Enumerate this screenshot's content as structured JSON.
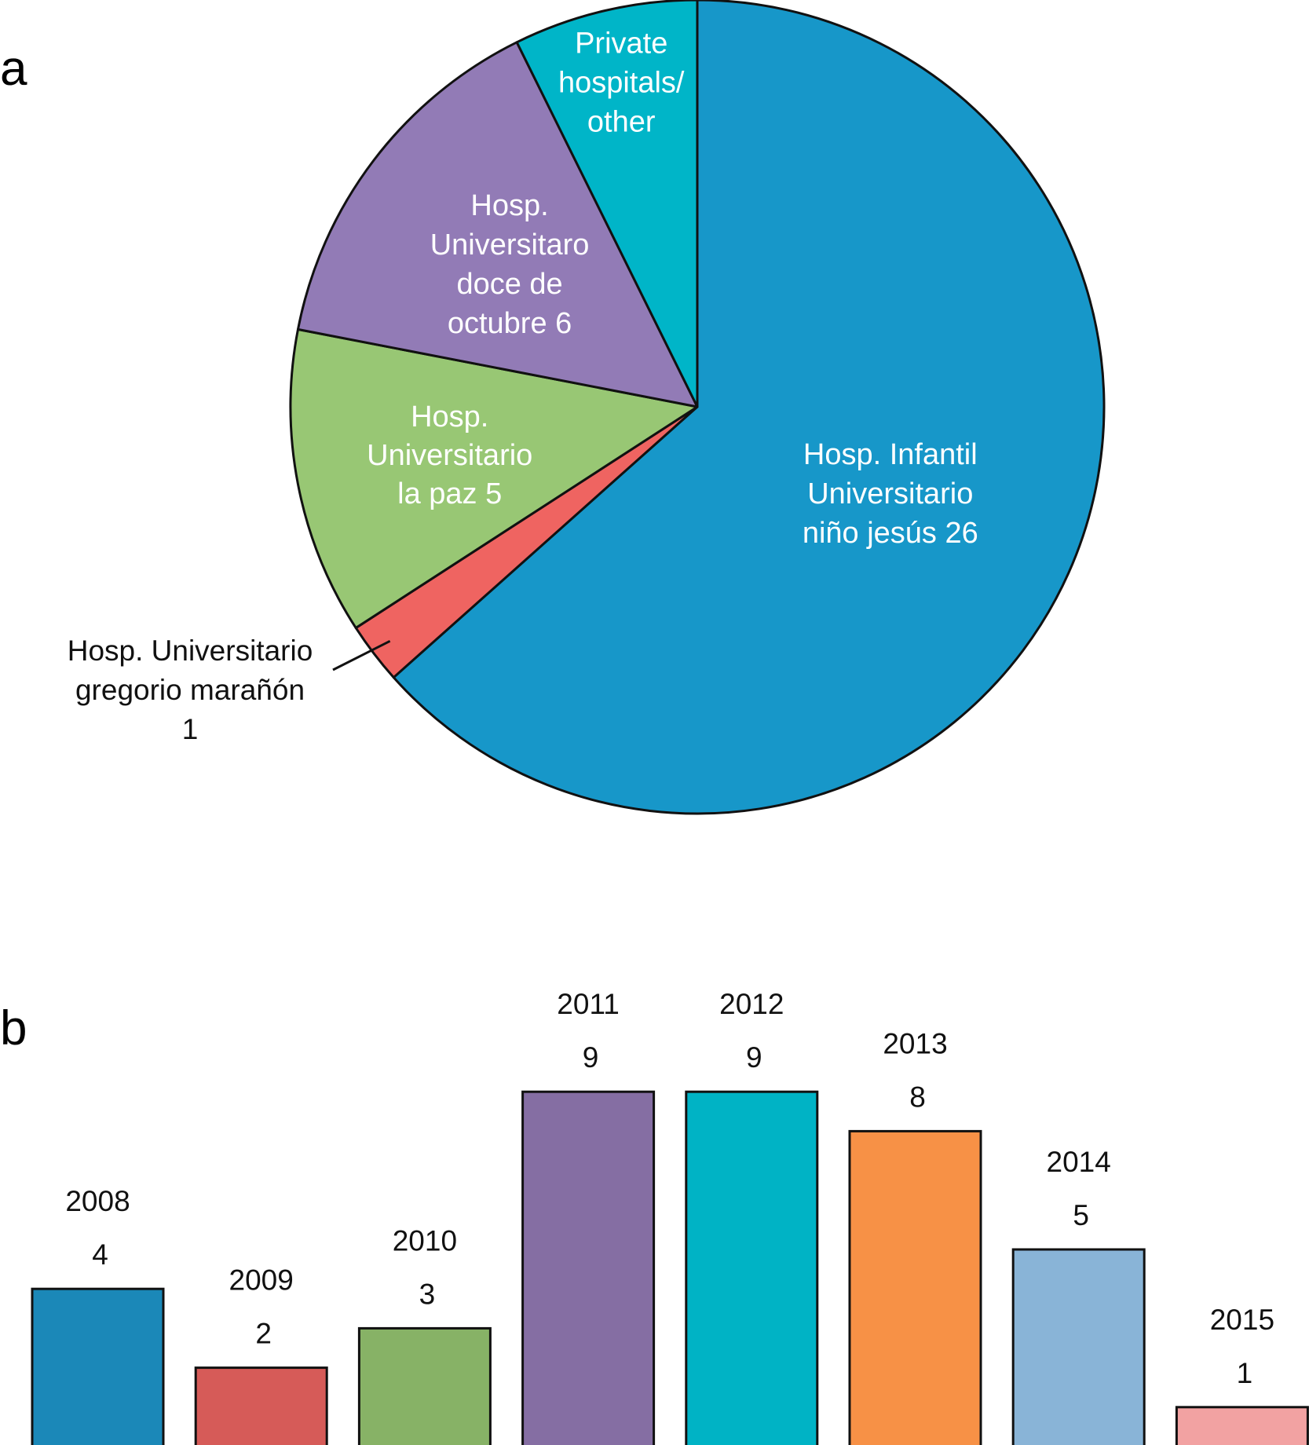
{
  "panels": {
    "a": "a",
    "b": "b"
  },
  "chart_data": [
    {
      "type": "pie",
      "panel": "a",
      "slices": [
        {
          "label_lines": [
            "Hosp. Infantil",
            "Universitario",
            "niño jesús 26"
          ],
          "value": 26,
          "color": "#1797c9",
          "label_position": "inside"
        },
        {
          "label_lines": [
            "Hosp. Universitario",
            "gregorio marañón",
            "1"
          ],
          "value": 1,
          "color": "#ef6461",
          "label_position": "outside-left-leader"
        },
        {
          "label_lines": [
            "Hosp.",
            "Universitario",
            "la paz 5"
          ],
          "value": 5,
          "color": "#98c774",
          "label_position": "inside"
        },
        {
          "label_lines": [
            "Hosp.",
            "Universitaro",
            "doce de",
            "octubre 6"
          ],
          "value": 6,
          "color": "#927bb6",
          "label_position": "inside"
        },
        {
          "label_lines": [
            "Private",
            "hospitals/",
            "other"
          ],
          "value": 3,
          "color": "#00b5c8",
          "label_position": "inside"
        }
      ],
      "start_angle": "12 o'clock",
      "direction": "clockwise"
    },
    {
      "type": "bar",
      "panel": "b",
      "categories": [
        "2008",
        "2009",
        "2010",
        "2011",
        "2012",
        "2013",
        "2014",
        "2015"
      ],
      "values": [
        4,
        2,
        3,
        9,
        9,
        8,
        5,
        1
      ],
      "colors": [
        "#1b88b8",
        "#d65b58",
        "#87b266",
        "#856ea3",
        "#00b3c5",
        "#f79146",
        "#89b4d7",
        "#f2a2a2"
      ],
      "ylim": [
        0,
        9
      ]
    }
  ]
}
